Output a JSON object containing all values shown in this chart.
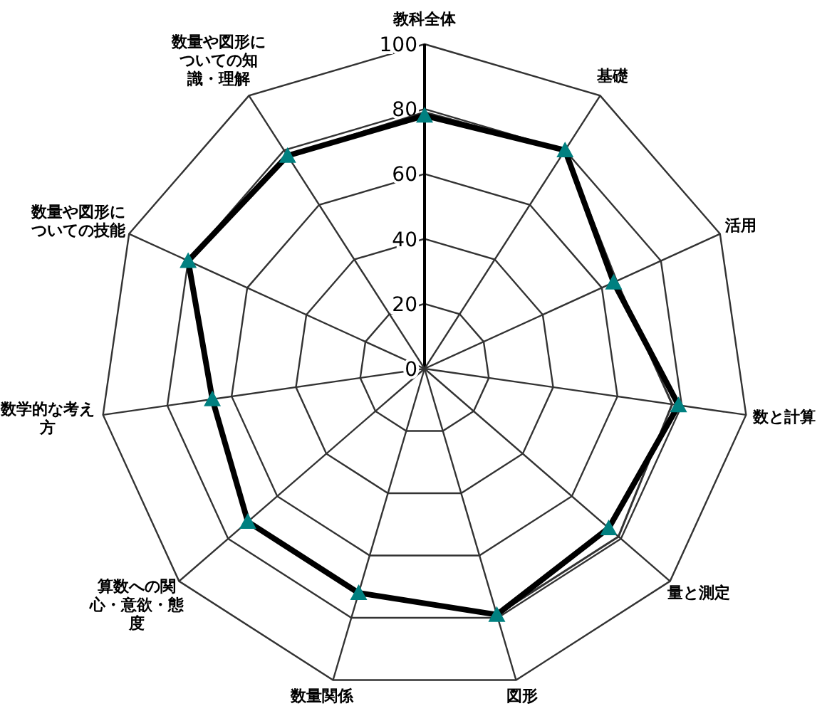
{
  "chart_data": {
    "type": "radar",
    "categories": [
      "教科全体",
      "基礎",
      "活用",
      "数と計算",
      "量と測定",
      "図形",
      "数量関係",
      "算数への関心・意欲・態度",
      "数学的な考え方",
      "数量や図形についての技能",
      "数量や図形についての知識・理解"
    ],
    "ylim": [
      0,
      100
    ],
    "yticks": [
      0,
      20,
      40,
      60,
      80,
      100
    ],
    "grid": true,
    "line_style": "solid",
    "series": [
      {
        "color": "#000000",
        "marker": "triangle",
        "values": [
          78,
          80,
          64,
          79,
          75,
          79,
          72,
          72,
          66,
          80,
          78
        ]
      },
      {
        "color": "#333333",
        "marker": "none",
        "values": [
          79,
          80,
          65,
          77,
          79,
          79,
          72,
          72,
          66,
          80,
          78
        ]
      }
    ]
  }
}
